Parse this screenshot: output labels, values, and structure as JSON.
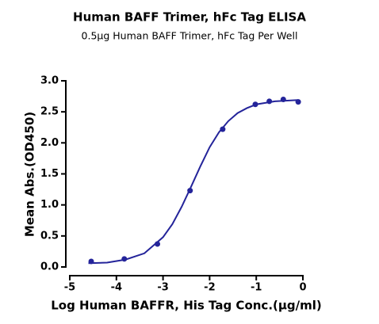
{
  "chart_data": {
    "type": "scatter",
    "title": "Human BAFF Trimer, hFc Tag ELISA",
    "subtitle": "0.5μg Human BAFF Trimer, hFc Tag Per Well",
    "x_label": "Log Human BAFFR, His Tag Conc.(μg/ml)",
    "y_label": "Mean Abs.(OD450)",
    "color": "#24249a",
    "x": [
      -4.54,
      -3.83,
      -3.12,
      -2.42,
      -1.72,
      -1.02,
      -0.72,
      -0.42,
      -0.1
    ],
    "values": [
      0.09,
      0.13,
      0.37,
      1.23,
      2.22,
      2.62,
      2.67,
      2.7,
      2.66
    ],
    "fit": {
      "x": [
        -4.6,
        -4.2,
        -3.8,
        -3.4,
        -3.0,
        -2.8,
        -2.6,
        -2.4,
        -2.2,
        -2.0,
        -1.8,
        -1.6,
        -1.4,
        -1.2,
        -1.0,
        -0.6,
        -0.1
      ],
      "values": [
        0.06,
        0.07,
        0.12,
        0.22,
        0.48,
        0.69,
        0.97,
        1.29,
        1.62,
        1.93,
        2.17,
        2.35,
        2.48,
        2.56,
        2.62,
        2.67,
        2.69
      ]
    },
    "xlim": [
      -5,
      0
    ],
    "xticks": [
      -5,
      -4,
      -3,
      -2,
      -1,
      0
    ],
    "ylim": [
      0,
      3
    ],
    "yticks": [
      {
        "value": 0,
        "label": "0.0"
      },
      {
        "value": 0.5,
        "label": "0.5"
      },
      {
        "value": 1,
        "label": "1.0"
      },
      {
        "value": 1.5,
        "label": "1.5"
      },
      {
        "value": 2,
        "label": "2.0"
      },
      {
        "value": 2.5,
        "label": "2.5"
      },
      {
        "value": 3,
        "label": "3.0"
      }
    ],
    "grid": false
  }
}
